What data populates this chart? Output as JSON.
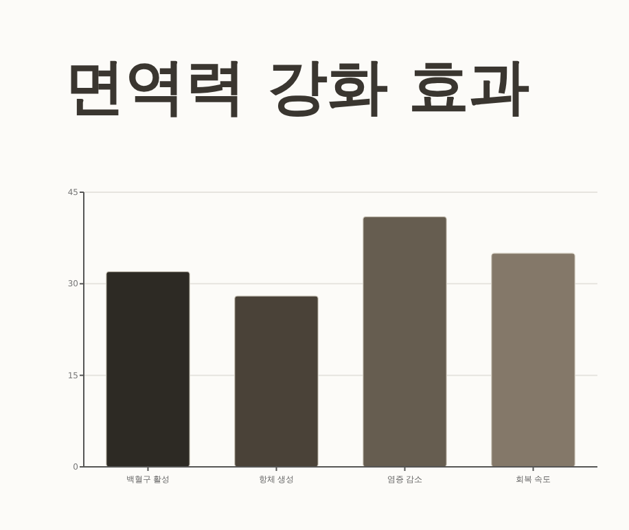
{
  "chart_data": {
    "type": "bar",
    "title": "면역력 강화 효과",
    "categories": [
      "백혈구 활성",
      "항체 생성",
      "염증 감소",
      "회복 속도"
    ],
    "values": [
      32,
      28,
      41,
      35
    ],
    "colors": [
      "#2d2a24",
      "#4a4238",
      "#665d50",
      "#847869"
    ],
    "ylim": [
      0,
      45
    ],
    "yticks": [
      0,
      15,
      30,
      45
    ],
    "grid": "y"
  }
}
